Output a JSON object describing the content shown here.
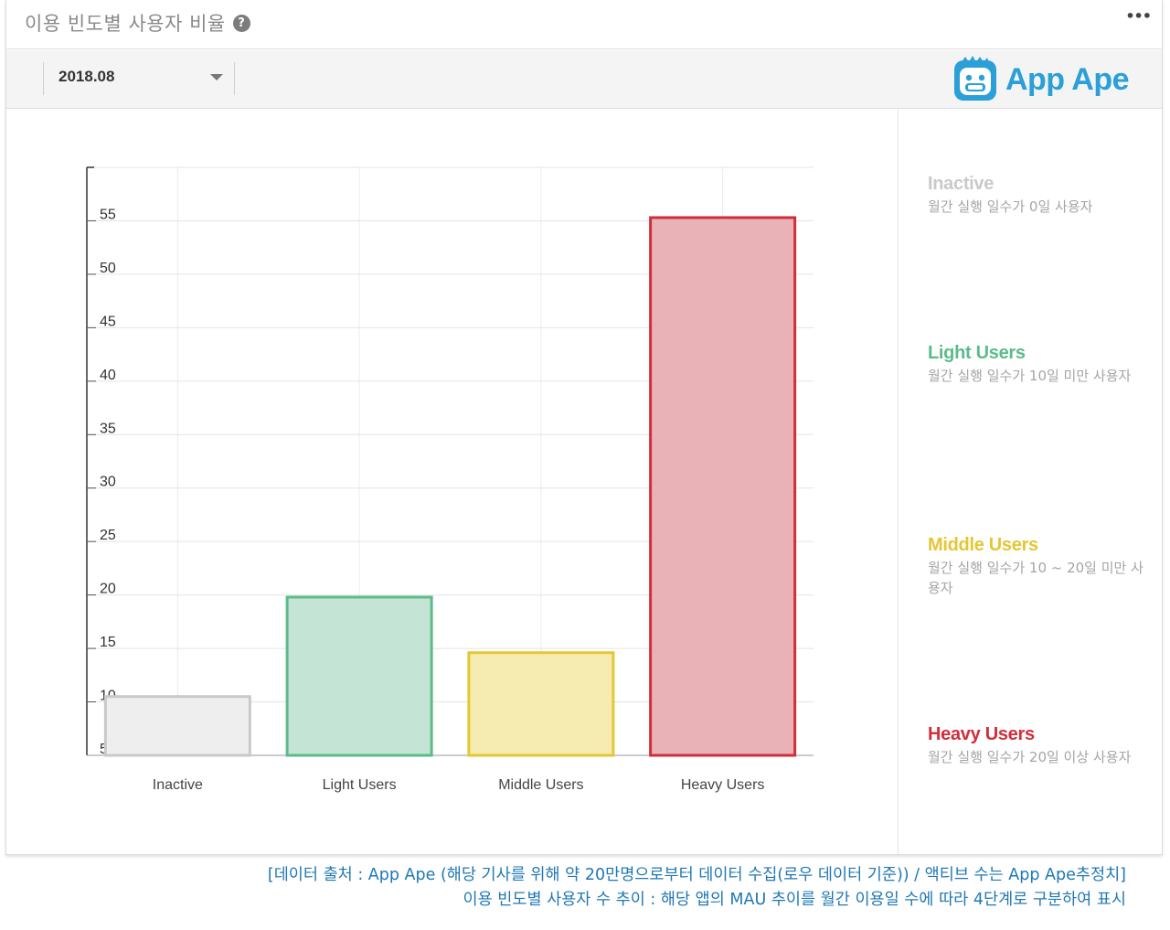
{
  "header": {
    "title": "이용 빈도별 사용자 비율",
    "more_label": "•••"
  },
  "help_icon": "question-circle-icon",
  "toolbar": {
    "month_value": "2018.08",
    "brand": "App Ape"
  },
  "colors": {
    "inactive": "#c9c9c9",
    "light": "#5cbb8a",
    "middle": "#e5c633",
    "heavy": "#d12e3b",
    "caption": "#1f78b4"
  },
  "chart_data": {
    "type": "bar",
    "categories": [
      "Inactive",
      "Light Users",
      "Middle Users",
      "Heavy Users"
    ],
    "values": [
      10.5,
      19.8,
      14.6,
      55.3
    ],
    "ylim": [
      5,
      60
    ],
    "y_ticks": [
      5,
      10,
      15,
      20,
      25,
      30,
      35,
      40,
      45,
      50,
      55
    ],
    "grid": true,
    "legend_position": "right"
  },
  "legend": [
    {
      "title": "Inactive",
      "description": "월간 실행 일수가 0일 사용자",
      "color_key": "inactive"
    },
    {
      "title": "Light Users",
      "description": "월간 실행 일수가 10일 미만 사용자",
      "color_key": "light"
    },
    {
      "title": "Middle Users",
      "description": "월간 실행 일수가 10 ~ 20일 미만 사용자",
      "color_key": "middle"
    },
    {
      "title": "Heavy Users",
      "description": "월간 실행 일수가 20일 이상 사용자",
      "color_key": "heavy"
    }
  ],
  "caption": {
    "line1": "[데이터 출처 : App Ape (해당 기사를 위해 약 20만명으로부터 데이터 수집(로우 데이터 기준)) / 액티브 수는 App Ape추정치]",
    "line2": "이용 빈도별 사용자 수 추이 : 해당 앱의 MAU 추이를 월간 이용일 수에 따라 4단계로 구분하여 표시"
  }
}
